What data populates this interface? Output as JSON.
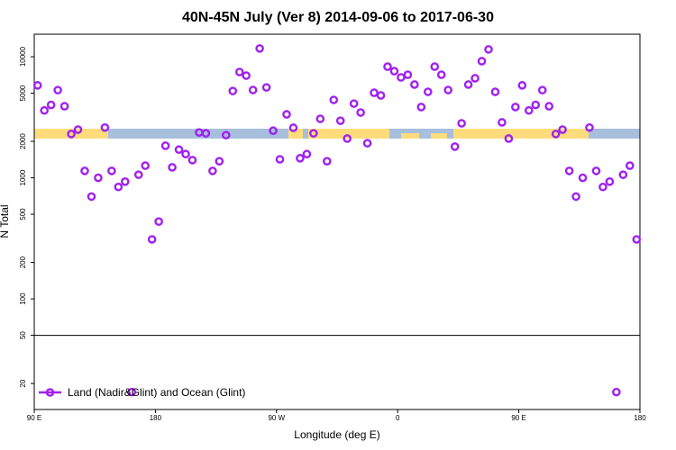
{
  "chart_data": {
    "type": "scatter",
    "title": "40N-45N July (Ver 8)   2014-09-06 to 2017-06-30",
    "xlabel": "Longitude (deg E)",
    "ylabel": "N Total",
    "log_y": true,
    "grid": false,
    "legend": "bottom-left",
    "hline": 50,
    "xlim": [
      90,
      540
    ],
    "xticks": [
      {
        "value": 90,
        "label": "90 E"
      },
      {
        "value": 180,
        "label": "180"
      },
      {
        "value": 270,
        "label": "90 W"
      },
      {
        "value": 360,
        "label": "0"
      },
      {
        "value": 450,
        "label": "90 E"
      },
      {
        "value": 540,
        "label": "180"
      }
    ],
    "ylim": [
      12.2,
      15350
    ],
    "yticks": [
      20,
      50,
      100,
      200,
      500,
      1000,
      2000,
      5000,
      10000
    ],
    "series": [
      {
        "name": "Land (Nadir&Glint) and Ocean (Glint)",
        "color": "#a020f0",
        "x": [
          92.5,
          97.5,
          102.5,
          107.5,
          112.5,
          117.5,
          122.5,
          127.5,
          132.5,
          137.5,
          142.5,
          147.5,
          152.5,
          157.5,
          162.5,
          167.5,
          172.5,
          177.5,
          182.5,
          187.5,
          192.5,
          197.5,
          202.5,
          207.5,
          212.5,
          217.5,
          222.5,
          227.5,
          232.5,
          237.5,
          242.5,
          247.5,
          252.5,
          257.5,
          262.5,
          267.5,
          272.5,
          277.5,
          282.5,
          287.5,
          292.5,
          297.5,
          302.5,
          307.5,
          312.5,
          317.5,
          322.5,
          327.5,
          332.5,
          337.5,
          342.5,
          347.5,
          352.5,
          357.5,
          362.5,
          367.5,
          372.5,
          377.5,
          382.5,
          387.5,
          392.5,
          397.5,
          402.5,
          407.5,
          412.5,
          417.5,
          422.5,
          427.5,
          432.5,
          437.5,
          442.5,
          447.5,
          452.5,
          457.5,
          462.5,
          467.5,
          472.5,
          477.5,
          482.5,
          487.5,
          492.5,
          497.5,
          502.5,
          507.5,
          512.5,
          517.5,
          522.5,
          527.5,
          532.5,
          537.5
        ],
        "values": [
          5800,
          3600,
          4000,
          5300,
          3900,
          2300,
          2500,
          1140,
          700,
          1000,
          2600,
          1140,
          840,
          930,
          17,
          1060,
          1260,
          310,
          435,
          1840,
          1220,
          1710,
          1570,
          1400,
          2370,
          2330,
          1140,
          1370,
          2250,
          5210,
          7480,
          6980,
          5310,
          11700,
          5580,
          2450,
          1420,
          3340,
          2590,
          1450,
          1570,
          2330,
          3070,
          1370,
          4400,
          2960,
          2110,
          4100,
          3460,
          1930,
          5040,
          4790,
          8280,
          7600,
          6750,
          7100,
          5890,
          3840,
          5130,
          8280,
          7100,
          5310,
          1810,
          2820,
          5890,
          6640,
          9190,
          11500,
          5130,
          2870,
          2110,
          3840,
          5800,
          3600,
          4000,
          5300,
          3900,
          2300,
          2500,
          1140,
          700,
          1000,
          2600,
          1140,
          840,
          930,
          17,
          1060,
          1260,
          310
        ]
      }
    ]
  }
}
